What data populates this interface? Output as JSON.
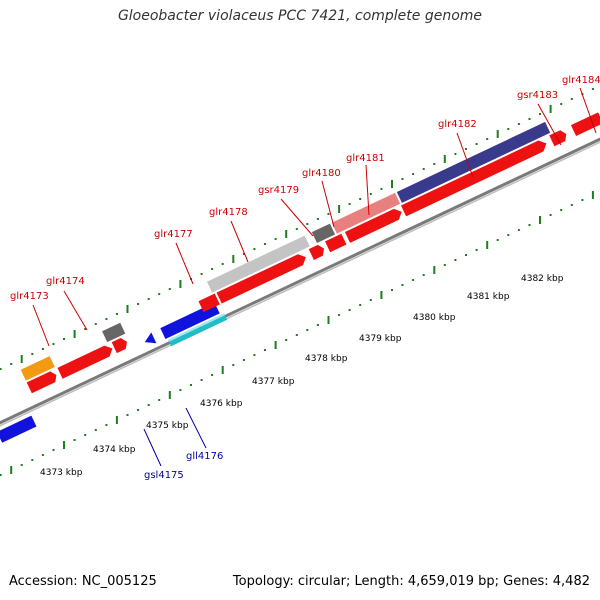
{
  "title": "Gloeobacter violaceus PCC 7421, complete genome",
  "footer": {
    "accession": "Accession: NC_005125",
    "summary": "Topology: circular; Length: 4,659,019 bp; Genes: 4,482"
  },
  "colors": {
    "plus_label": "#cc0000",
    "minus_label": "#0000aa",
    "backbone": "#8a8a8a",
    "tick": "#1e7d1e",
    "red": "#ee1111",
    "blue": "#1212dd",
    "grey": "#c4c4c4",
    "dark_grey": "#666666",
    "navy": "#3a3a8c",
    "pink": "#e98080",
    "orange": "#f29a11",
    "cyan": "#22bcc8"
  },
  "scale": {
    "labels": [
      "4373 kbp",
      "4374 kbp",
      "4375 kbp",
      "4376 kbp",
      "4377 kbp",
      "4378 kbp",
      "4379 kbp",
      "4380 kbp",
      "4381 kbp",
      "4382 kbp"
    ]
  },
  "genes_top": [
    "glr4173",
    "glr4174",
    "glr4177",
    "glr4178",
    "gsr4179",
    "glr4180",
    "glr4181",
    "glr4182",
    "gsr4183",
    "glr4184"
  ],
  "genes_bottom": [
    "gsl4175",
    "gll4176"
  ]
}
